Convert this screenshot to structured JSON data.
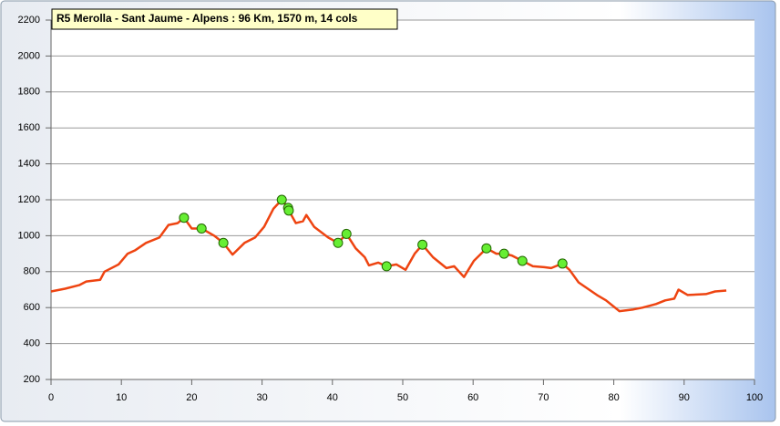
{
  "chart_data": {
    "type": "line",
    "title": "R5 Merolla -  Sant Jaume - Alpens : 96  Km, 1570  m, 14  cols",
    "x": [
      0,
      2,
      4,
      5,
      7,
      7.6,
      9.6,
      10.9,
      12,
      13.5,
      15.4,
      16.7,
      18,
      18.9,
      20,
      21.4,
      23.2,
      24.5,
      25.8,
      27.5,
      29,
      30.3,
      31.6,
      32.8,
      33.7,
      33.8,
      34.8,
      35.8,
      36.3,
      37.4,
      39.4,
      40.8,
      42,
      43.3,
      44.6,
      45.2,
      46.5,
      47.7,
      49.1,
      50.4,
      51.7,
      52.8,
      54.3,
      56.2,
      57.3,
      58.7,
      60.1,
      61.9,
      63.3,
      64.4,
      65.5,
      67,
      68.5,
      70.1,
      71.1,
      72.7,
      73.7,
      75,
      77.6,
      78.9,
      80.8,
      82.8,
      84.1,
      86,
      87.3,
      88.6,
      89.2,
      90.5,
      93.1,
      94.4,
      96
    ],
    "values": [
      690,
      705,
      725,
      745,
      755,
      800,
      840,
      900,
      920,
      960,
      990,
      1060,
      1070,
      1100,
      1040,
      1040,
      1000,
      960,
      895,
      960,
      990,
      1050,
      1150,
      1200,
      1155,
      1140,
      1070,
      1080,
      1115,
      1050,
      990,
      960,
      1010,
      930,
      880,
      835,
      850,
      830,
      840,
      810,
      900,
      950,
      880,
      820,
      830,
      770,
      860,
      930,
      900,
      900,
      890,
      860,
      830,
      825,
      820,
      845,
      810,
      740,
      670,
      640,
      580,
      590,
      600,
      620,
      640,
      650,
      700,
      670,
      675,
      690,
      695
    ],
    "color": "#ee4411",
    "markers": {
      "x": [
        18.9,
        21.4,
        24.5,
        32.8,
        33.7,
        33.8,
        40.8,
        42,
        47.7,
        52.8,
        61.9,
        64.4,
        67,
        72.7
      ],
      "values": [
        1100,
        1040,
        960,
        1200,
        1155,
        1140,
        960,
        1010,
        830,
        950,
        930,
        900,
        860,
        845
      ],
      "color": "#66ee33"
    },
    "xlim": [
      0,
      100
    ],
    "xticks": [
      0,
      10,
      20,
      30,
      40,
      50,
      60,
      70,
      80,
      90,
      100
    ],
    "ylim": [
      200,
      2200
    ],
    "yticks": [
      200,
      400,
      600,
      800,
      1000,
      1200,
      1400,
      1600,
      1800,
      2000,
      2200
    ],
    "grid": true
  }
}
